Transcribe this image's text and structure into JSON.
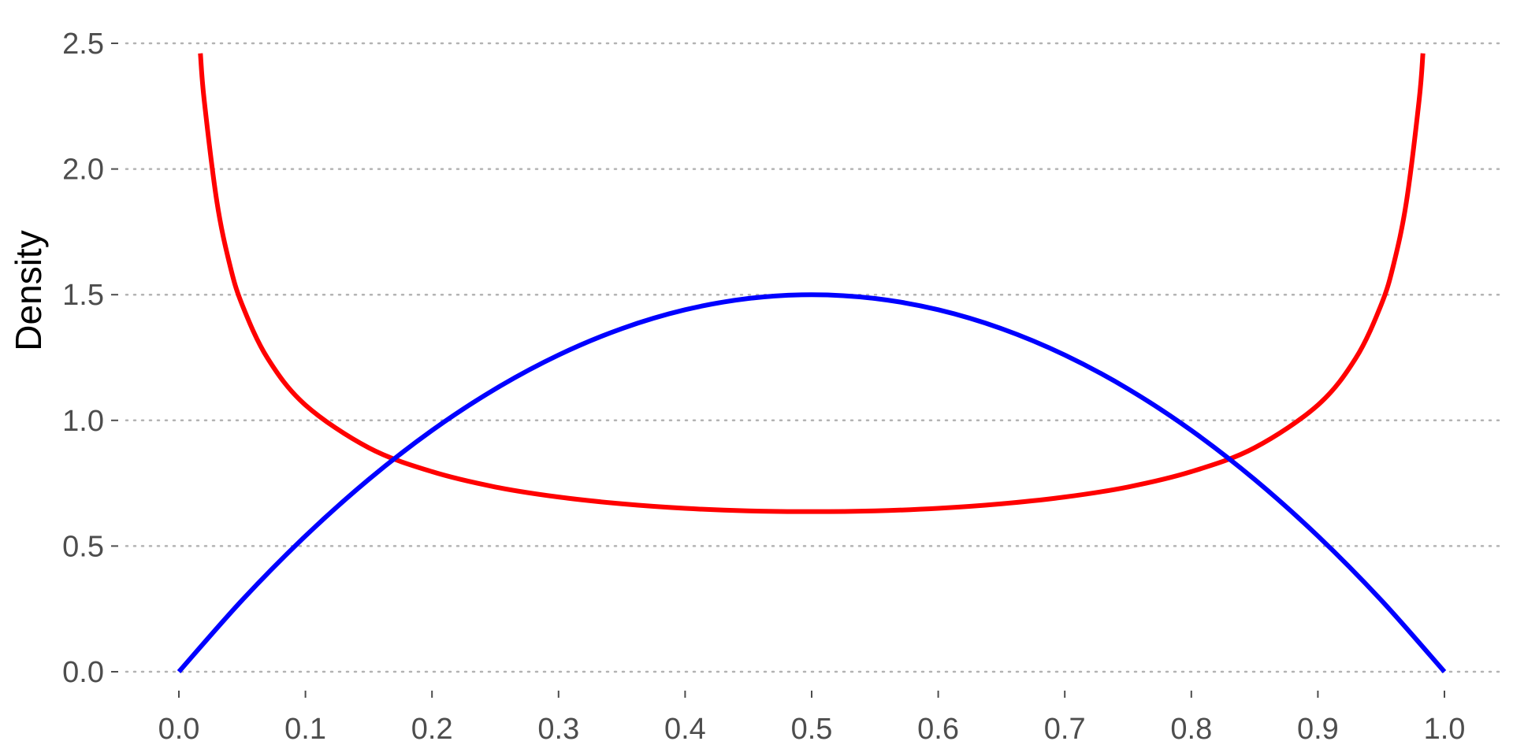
{
  "chart_data": {
    "type": "line",
    "title": "",
    "xlabel": "",
    "ylabel": "Density",
    "xlim": [
      0.0,
      1.0
    ],
    "ylim": [
      0.0,
      2.5
    ],
    "x_ticks": [
      "0.0",
      "0.1",
      "0.2",
      "0.3",
      "0.4",
      "0.5",
      "0.6",
      "0.7",
      "0.8",
      "0.9",
      "1.0"
    ],
    "y_ticks": [
      "0.0",
      "0.5",
      "1.0",
      "1.5",
      "2.0",
      "2.5"
    ],
    "grid": "horizontal dotted",
    "legend": "none",
    "series": [
      {
        "color": "#ff0000",
        "x": [
          0.017,
          0.02,
          0.03,
          0.04,
          0.05,
          0.07,
          0.1,
          0.15,
          0.2,
          0.25,
          0.3,
          0.35,
          0.4,
          0.45,
          0.5,
          0.55,
          0.6,
          0.65,
          0.7,
          0.75,
          0.8,
          0.85,
          0.9,
          0.93,
          0.95,
          0.96,
          0.97,
          0.98,
          0.983
        ],
        "y": [
          2.46,
          2.274,
          1.871,
          1.624,
          1.46,
          1.248,
          1.061,
          0.891,
          0.796,
          0.735,
          0.695,
          0.668,
          0.65,
          0.64,
          0.637,
          0.64,
          0.65,
          0.668,
          0.695,
          0.735,
          0.796,
          0.891,
          1.061,
          1.248,
          1.46,
          1.624,
          1.871,
          2.274,
          2.46
        ]
      },
      {
        "color": "#0000ff",
        "x": [
          0.0,
          0.05,
          0.1,
          0.15,
          0.2,
          0.25,
          0.3,
          0.35,
          0.4,
          0.45,
          0.5,
          0.55,
          0.6,
          0.65,
          0.7,
          0.75,
          0.8,
          0.85,
          0.9,
          0.95,
          1.0
        ],
        "y": [
          0.0,
          0.285,
          0.54,
          0.765,
          0.96,
          1.125,
          1.26,
          1.365,
          1.44,
          1.485,
          1.5,
          1.485,
          1.44,
          1.365,
          1.26,
          1.125,
          0.96,
          0.765,
          0.54,
          0.285,
          0.0
        ]
      }
    ]
  }
}
